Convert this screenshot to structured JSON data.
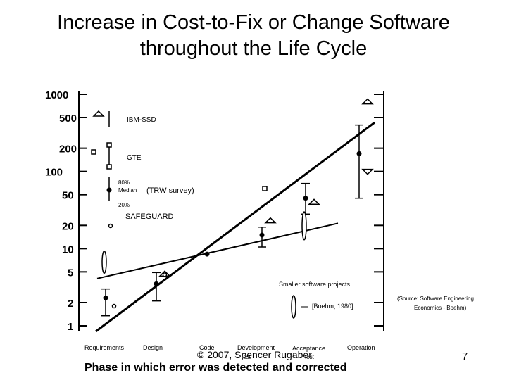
{
  "title": "Increase in Cost-to-Fix or Change Software throughout the Life Cycle",
  "footer": "© 2007, Spencer Rugaber",
  "page_number": "7",
  "chart_data": {
    "type": "scatter",
    "title": "Increase in Cost-to-Fix or Change Software throughout the Life Cycle",
    "xlabel": "Phase in which error was detected and corrected",
    "ylabel": "",
    "y_scale": "log",
    "ylim": [
      1,
      1000
    ],
    "y_ticks": [
      "1000",
      "500",
      "200",
      "100",
      "50",
      "20",
      "10",
      "5",
      "2",
      "1"
    ],
    "categories": [
      "Requirements",
      "Design",
      "Code",
      "Development Test",
      "Acceptance Test",
      "Operation"
    ],
    "category_labels": [
      {
        "text": "Requirements"
      },
      {
        "text": "Design"
      },
      {
        "text": "Code"
      },
      {
        "text": "Development"
      },
      {
        "text": "test"
      },
      {
        "text": "Acceptance"
      },
      {
        "text": "test"
      },
      {
        "text": "Operation"
      }
    ],
    "legend": {
      "ibm": "IBM-SSD",
      "gte": "GTE",
      "trw_80": "80%",
      "trw_median": "Median",
      "trw_survey": "(TRW survey)",
      "trw_20": "20%",
      "safeguard": "SAFEGUARD",
      "smaller": "Smaller software projects",
      "boehm": "[Boehm, 1980]"
    },
    "source_note": [
      "(Source: Software Engineering",
      "Economics - Boehm)"
    ],
    "series": [
      {
        "name": "TRW survey median",
        "marker": "dot",
        "points": [
          {
            "x": "Requirements",
            "y": 2.3
          },
          {
            "x": "Design",
            "y": 3.5
          },
          {
            "x": "Code",
            "y": 8.5
          },
          {
            "x": "Development Test",
            "y": 15
          },
          {
            "x": "Acceptance Test",
            "y": 45
          },
          {
            "x": "Operation",
            "y": 170
          }
        ]
      },
      {
        "name": "TRW survey 20%-80% range",
        "marker": "whisker",
        "ranges": [
          {
            "x": "Requirements",
            "low": 1.35,
            "high": 3.0
          },
          {
            "x": "Design",
            "low": 2.1,
            "high": 4.9
          },
          {
            "x": "Development Test",
            "low": 10.5,
            "high": 19
          },
          {
            "x": "Acceptance Test",
            "low": 28,
            "high": 70
          },
          {
            "x": "Operation",
            "low": 45,
            "high": 400
          }
        ]
      },
      {
        "name": "IBM-SSD",
        "marker": "triangle",
        "points": [
          {
            "x": "Design",
            "y": 4.7
          },
          {
            "x": "Development Test",
            "y": 23
          },
          {
            "x": "Acceptance Test",
            "y": 40
          }
        ]
      },
      {
        "name": "GTE",
        "marker": "square",
        "points": [
          {
            "x": "Development Test",
            "y": 60
          }
        ]
      },
      {
        "name": "SAFEGUARD",
        "marker": "circle",
        "points": [
          {
            "x": "Requirements",
            "y": 1.8
          },
          {
            "x": "Design",
            "y": 4.6
          }
        ]
      },
      {
        "name": "Smaller software projects",
        "marker": "ellipse-range",
        "ranges": [
          {
            "x": "Requirements",
            "low": 4.8,
            "high": 9.3
          },
          {
            "x": "Acceptance Test",
            "low": 13,
            "high": 30
          }
        ]
      },
      {
        "name": "Operation outliers",
        "marker": "triangle",
        "points": [
          {
            "x": "Operation",
            "y": 800
          },
          {
            "x": "Operation",
            "y": 100
          }
        ]
      }
    ],
    "trend_lines": [
      {
        "name": "Large projects trend",
        "from": {
          "x": "Requirements",
          "y": 1.0
        },
        "to": {
          "x": "Operation",
          "y": 250
        }
      },
      {
        "name": "Smaller projects trend",
        "from": {
          "x": "Requirements",
          "y": 5.5
        },
        "to": {
          "x": "Acceptance Test",
          "y": 20
        }
      }
    ],
    "grid": false
  }
}
